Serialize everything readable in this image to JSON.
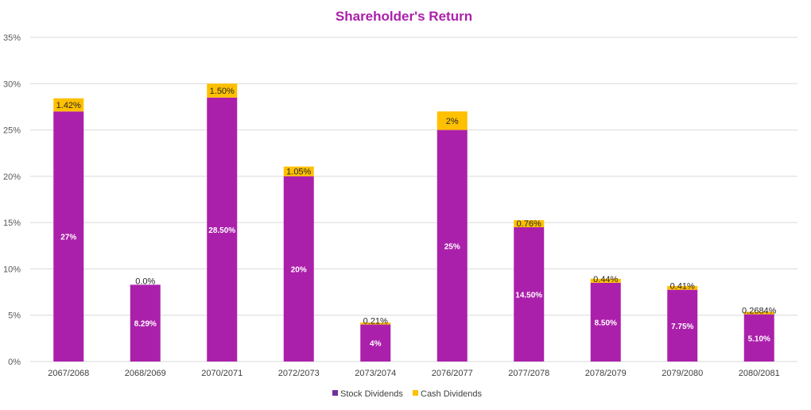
{
  "chart_data": {
    "type": "bar",
    "stacked": true,
    "title": "Shareholder's Return",
    "xlabel": "",
    "ylabel": "",
    "ylim": [
      0,
      35
    ],
    "yticks": [
      "0%",
      "5%",
      "10%",
      "15%",
      "20%",
      "25%",
      "30%",
      "35%"
    ],
    "grid": true,
    "legend_position": "bottom",
    "categories": [
      "2067/2068",
      "2068/2069",
      "2070/2071",
      "2072/2073",
      "2073/2074",
      "2076/2077",
      "2077/2078",
      "2078/2079",
      "2079/2080",
      "2080/2081"
    ],
    "series": [
      {
        "name": "Stock Dividends",
        "color": "#AB20AB",
        "values": [
          27,
          8.29,
          28.5,
          20,
          4,
          25,
          14.5,
          8.5,
          7.75,
          5.1
        ],
        "labels": [
          "27%",
          "8.29%",
          "28.50%",
          "20%",
          "4%",
          "25%",
          "14.50%",
          "8.50%",
          "7.75%",
          "5.10%"
        ]
      },
      {
        "name": "Cash Dividends",
        "color": "#FFC000",
        "values": [
          1.42,
          0,
          1.5,
          1.05,
          0.21,
          2,
          0.76,
          0.44,
          0.41,
          0.2684
        ],
        "labels": [
          "1.42%",
          "0.0%",
          "1.50%",
          "1.05%",
          "0.21%",
          "2%",
          "0.76%",
          "0.44%",
          "0.41%",
          "0.2684%"
        ]
      }
    ]
  },
  "colors": {
    "title": "#AB20AB",
    "stock_legend": "#7030A0",
    "cash_legend": "#FFC000",
    "grid": "#D9D9D9"
  }
}
